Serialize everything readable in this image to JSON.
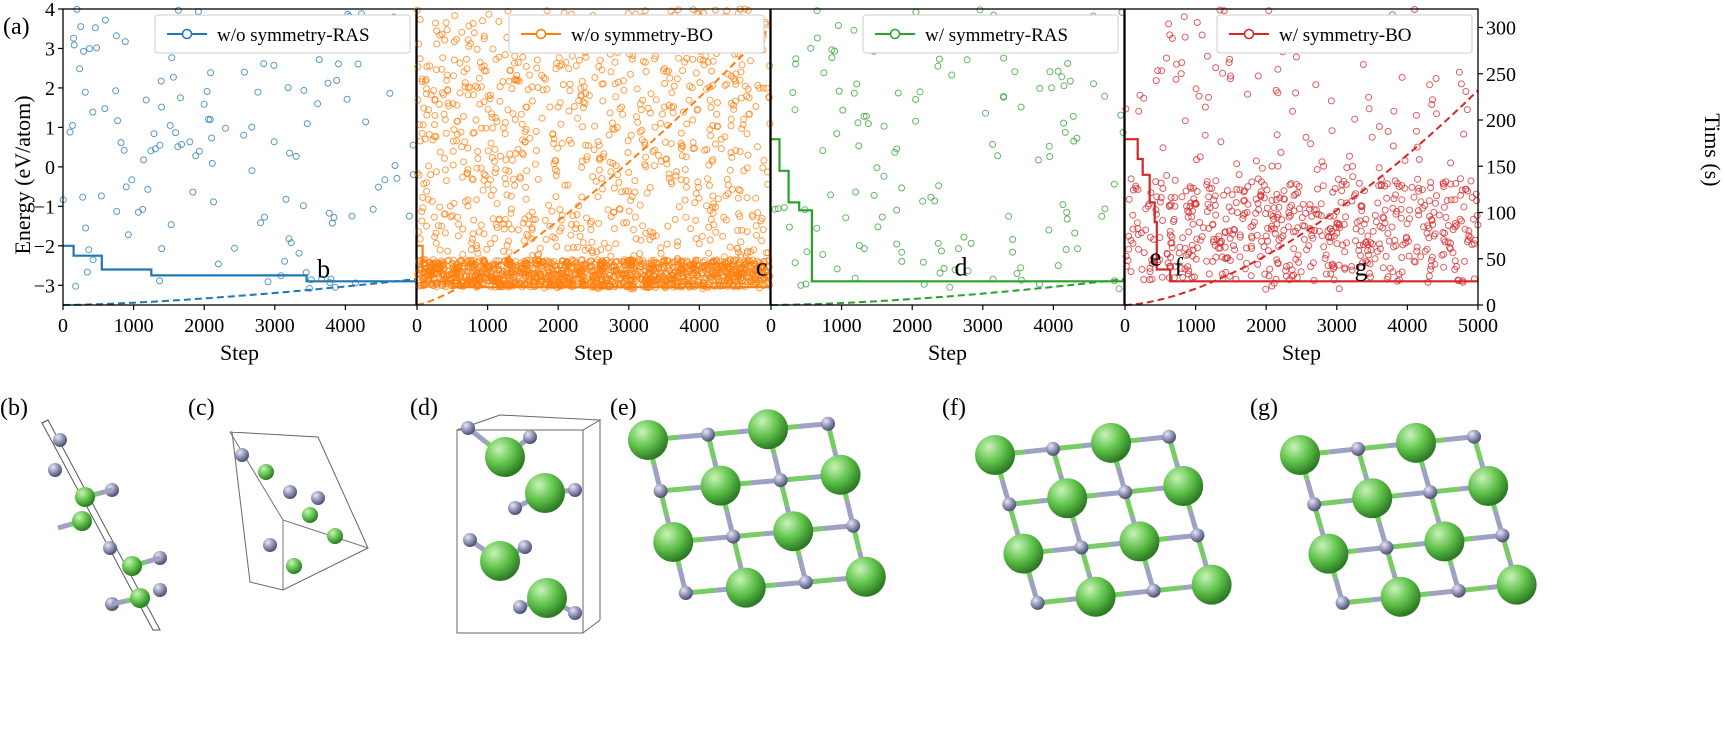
{
  "figure_label": "(a)",
  "colors": {
    "blue": "#1f77b4",
    "orange": "#ff7f0e",
    "green": "#2ca02c",
    "red": "#d62728",
    "atom_green": "#5fc24a",
    "atom_purple": "#8f92b5"
  },
  "shared": {
    "ylabel": "Energy (eV/atom)",
    "y2label": "Tims (s)",
    "xlabel": "Step",
    "ylim": [
      -3.5,
      4
    ],
    "y2lim": [
      0,
      320
    ],
    "xlim": [
      0,
      5000
    ],
    "yticks": [
      "−3",
      "−2",
      "−1",
      "0",
      "1",
      "2",
      "3",
      "4"
    ],
    "y2ticks": [
      "0",
      "50",
      "100",
      "150",
      "200",
      "250",
      "300"
    ],
    "xticks_first": [
      "0",
      "1000",
      "2000",
      "3000",
      "4000"
    ],
    "xticks_last": [
      "0",
      "1000",
      "2000",
      "3000",
      "4000",
      "5000"
    ]
  },
  "chart_data": [
    {
      "type": "scatter",
      "title": "",
      "legend": "w/o symmetry-RAS",
      "legend_position": "top-right",
      "color": "#1f77b4",
      "marker_label": "b",
      "marker_label_x": 3600,
      "marker_label_y": -2.8,
      "xlim": [
        0,
        5000
      ],
      "ylim": [
        -3.5,
        4
      ],
      "n_samples": 140,
      "seed": 11,
      "mean_energy": -0.6,
      "spread": 1.6,
      "best_energy": [
        [
          0,
          -2.0
        ],
        [
          150,
          -2.25
        ],
        [
          550,
          -2.6
        ],
        [
          1250,
          -2.75
        ],
        [
          3450,
          -2.9
        ],
        [
          5000,
          -2.9
        ]
      ],
      "time_curve": {
        "y0": 0,
        "y_end": 28,
        "power": 1.5
      }
    },
    {
      "type": "scatter",
      "title": "",
      "legend": "w/o symmetry-BO",
      "legend_position": "top-right",
      "color": "#ff7f0e",
      "marker_label": "c",
      "marker_label_x": 4800,
      "marker_label_y": -2.75,
      "xlim": [
        0,
        5000
      ],
      "ylim": [
        -3.5,
        4
      ],
      "n_samples": 2200,
      "seed": 23,
      "mean_energy": -2.7,
      "spread": 0.35,
      "top_fraction": 0.45,
      "best_energy": [
        [
          0,
          -2.0
        ],
        [
          80,
          -2.6
        ],
        [
          200,
          -2.9
        ],
        [
          500,
          -3.05
        ],
        [
          5000,
          -3.05
        ]
      ],
      "time_curve": {
        "y0": 0,
        "y_end": 300,
        "power": 1.3
      }
    },
    {
      "type": "scatter",
      "title": "",
      "legend": "w/ symmetry-RAS",
      "legend_position": "top-right",
      "color": "#2ca02c",
      "marker_label": "d",
      "marker_label_x": 2600,
      "marker_label_y": -2.75,
      "xlim": [
        0,
        5000
      ],
      "ylim": [
        -3.5,
        4
      ],
      "n_samples": 150,
      "seed": 37,
      "mean_energy": -0.5,
      "spread": 1.5,
      "best_energy": [
        [
          0,
          0.7
        ],
        [
          120,
          -0.1
        ],
        [
          250,
          -0.9
        ],
        [
          400,
          -1.1
        ],
        [
          580,
          -2.9
        ],
        [
          5000,
          -2.9
        ]
      ],
      "time_curve": {
        "y0": 0,
        "y_end": 28,
        "power": 1.6
      }
    },
    {
      "type": "scatter",
      "title": "",
      "legend": "w/ symmetry-BO",
      "legend_position": "top-right",
      "color": "#d62728",
      "marker_label": "g",
      "marker_label_x": 3250,
      "marker_label_y": -2.75,
      "extra_labels": [
        {
          "text": "e",
          "x": 350,
          "y": -2.5
        },
        {
          "text": "f",
          "x": 700,
          "y": -2.75
        }
      ],
      "xlim": [
        0,
        5000
      ],
      "ylim": [
        -3.5,
        4
      ],
      "n_samples": 700,
      "seed": 51,
      "mean_energy": -1.6,
      "spread": 1.3,
      "top_fraction": 0.25,
      "best_energy": [
        [
          0,
          0.7
        ],
        [
          180,
          0.2
        ],
        [
          250,
          -0.2
        ],
        [
          350,
          -0.9
        ],
        [
          420,
          -1.4
        ],
        [
          450,
          -2.6
        ],
        [
          640,
          -2.9
        ],
        [
          5000,
          -2.9
        ]
      ],
      "time_curve": {
        "y0": 0,
        "y_end": 232,
        "power": 1.6
      }
    }
  ],
  "structures": [
    {
      "label": "(b)"
    },
    {
      "label": "(c)"
    },
    {
      "label": "(d)"
    },
    {
      "label": "(e)"
    },
    {
      "label": "(f)"
    },
    {
      "label": "(g)"
    }
  ]
}
